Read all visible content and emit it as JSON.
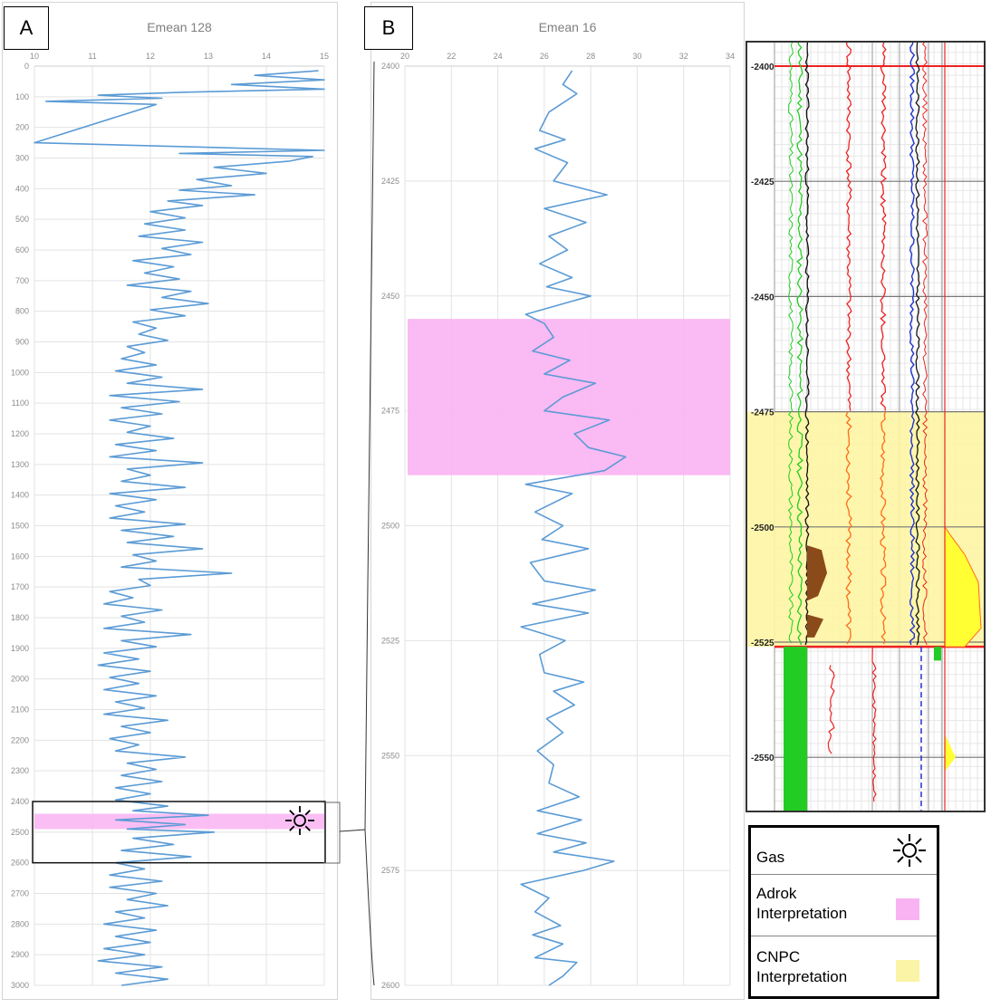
{
  "panel_a": {
    "letter": "A",
    "chart_data": {
      "type": "line",
      "title": "Emean 128",
      "x_axis_position": "top",
      "xlim": [
        10,
        15
      ],
      "x_ticks": [
        "10",
        "11",
        "12",
        "13",
        "14",
        "15"
      ],
      "ylim": [
        0,
        3000
      ],
      "y_inverted": true,
      "y_ticks": [
        "0",
        "100",
        "200",
        "300",
        "400",
        "500",
        "600",
        "700",
        "800",
        "900",
        "1000",
        "1100",
        "1200",
        "1300",
        "1400",
        "1500",
        "1600",
        "1700",
        "1800",
        "1900",
        "2000",
        "2100",
        "2200",
        "2300",
        "2400",
        "2500",
        "2600",
        "2700",
        "2800",
        "2900",
        "3000"
      ],
      "grid": true,
      "series": [
        {
          "color": "#5b9bd5",
          "points": [
            [
              14.9,
              15
            ],
            [
              13.8,
              30
            ],
            [
              15,
              45
            ],
            [
              13.4,
              60
            ],
            [
              15,
              75
            ],
            [
              12.6,
              85
            ],
            [
              11.1,
              95
            ],
            [
              12.2,
              105
            ],
            [
              10.2,
              115
            ],
            [
              12.1,
              125
            ],
            [
              10,
              250
            ],
            [
              15,
              275
            ],
            [
              12.5,
              285
            ],
            [
              14.8,
              295
            ],
            [
              14.4,
              310
            ],
            [
              13.1,
              330
            ],
            [
              14.0,
              350
            ],
            [
              12.8,
              370
            ],
            [
              13.4,
              390
            ],
            [
              12.5,
              405
            ],
            [
              13.8,
              420
            ],
            [
              12.3,
              440
            ],
            [
              12.9,
              455
            ],
            [
              12.0,
              475
            ],
            [
              12.6,
              495
            ],
            [
              11.9,
              515
            ],
            [
              12.6,
              535
            ],
            [
              11.8,
              555
            ],
            [
              12.9,
              575
            ],
            [
              12.2,
              595
            ],
            [
              12.7,
              615
            ],
            [
              11.7,
              635
            ],
            [
              12.4,
              655
            ],
            [
              11.9,
              675
            ],
            [
              12.5,
              695
            ],
            [
              11.6,
              715
            ],
            [
              12.7,
              735
            ],
            [
              12.2,
              755
            ],
            [
              13.0,
              775
            ],
            [
              12.0,
              795
            ],
            [
              12.6,
              815
            ],
            [
              11.7,
              835
            ],
            [
              12.1,
              855
            ],
            [
              11.8,
              875
            ],
            [
              12.3,
              895
            ],
            [
              11.6,
              915
            ],
            [
              11.9,
              935
            ],
            [
              11.5,
              955
            ],
            [
              12.1,
              975
            ],
            [
              11.4,
              995
            ],
            [
              12.2,
              1015
            ],
            [
              11.6,
              1035
            ],
            [
              12.9,
              1055
            ],
            [
              11.3,
              1075
            ],
            [
              12.5,
              1095
            ],
            [
              11.5,
              1115
            ],
            [
              12.2,
              1135
            ],
            [
              11.3,
              1155
            ],
            [
              12.0,
              1175
            ],
            [
              11.6,
              1195
            ],
            [
              12.4,
              1215
            ],
            [
              11.4,
              1235
            ],
            [
              12.1,
              1255
            ],
            [
              11.3,
              1275
            ],
            [
              12.9,
              1295
            ],
            [
              11.6,
              1315
            ],
            [
              12.0,
              1335
            ],
            [
              11.5,
              1355
            ],
            [
              12.6,
              1375
            ],
            [
              11.3,
              1395
            ],
            [
              12.1,
              1415
            ],
            [
              11.4,
              1435
            ],
            [
              11.9,
              1455
            ],
            [
              11.3,
              1475
            ],
            [
              12.6,
              1495
            ],
            [
              11.5,
              1515
            ],
            [
              12.4,
              1535
            ],
            [
              11.6,
              1555
            ],
            [
              12.9,
              1575
            ],
            [
              11.7,
              1595
            ],
            [
              12.1,
              1615
            ],
            [
              11.5,
              1635
            ],
            [
              13.4,
              1655
            ],
            [
              11.8,
              1675
            ],
            [
              12.0,
              1695
            ],
            [
              11.3,
              1715
            ],
            [
              11.7,
              1735
            ],
            [
              11.2,
              1755
            ],
            [
              12.2,
              1775
            ],
            [
              11.5,
              1795
            ],
            [
              11.9,
              1815
            ],
            [
              11.2,
              1835
            ],
            [
              12.7,
              1855
            ],
            [
              11.5,
              1875
            ],
            [
              12.1,
              1895
            ],
            [
              11.2,
              1915
            ],
            [
              11.8,
              1935
            ],
            [
              11.1,
              1955
            ],
            [
              12.0,
              1975
            ],
            [
              11.3,
              1995
            ],
            [
              11.8,
              2015
            ],
            [
              11.2,
              2035
            ],
            [
              12.1,
              2055
            ],
            [
              11.4,
              2075
            ],
            [
              11.9,
              2095
            ],
            [
              11.2,
              2115
            ],
            [
              12.3,
              2135
            ],
            [
              11.5,
              2155
            ],
            [
              12.0,
              2175
            ],
            [
              11.3,
              2195
            ],
            [
              11.8,
              2215
            ],
            [
              11.4,
              2235
            ],
            [
              12.6,
              2255
            ],
            [
              11.6,
              2275
            ],
            [
              12.1,
              2295
            ],
            [
              11.5,
              2315
            ],
            [
              12.2,
              2335
            ],
            [
              11.4,
              2355
            ],
            [
              12.0,
              2375
            ],
            [
              11.4,
              2395
            ],
            [
              12.3,
              2415
            ],
            [
              11.7,
              2430
            ],
            [
              13.0,
              2445
            ],
            [
              11.4,
              2460
            ],
            [
              12.6,
              2475
            ],
            [
              11.6,
              2490
            ],
            [
              13.1,
              2500
            ],
            [
              11.7,
              2520
            ],
            [
              12.4,
              2540
            ],
            [
              11.5,
              2560
            ],
            [
              12.7,
              2580
            ],
            [
              11.4,
              2600
            ],
            [
              11.9,
              2620
            ],
            [
              11.3,
              2640
            ],
            [
              12.2,
              2660
            ],
            [
              11.3,
              2680
            ],
            [
              12.1,
              2700
            ],
            [
              11.6,
              2720
            ],
            [
              12.3,
              2740
            ],
            [
              11.4,
              2760
            ],
            [
              11.9,
              2780
            ],
            [
              11.2,
              2800
            ],
            [
              12.1,
              2820
            ],
            [
              11.4,
              2840
            ],
            [
              12.0,
              2860
            ],
            [
              11.2,
              2880
            ],
            [
              11.9,
              2900
            ],
            [
              11.1,
              2920
            ],
            [
              12.2,
              2940
            ],
            [
              11.4,
              2960
            ],
            [
              12.3,
              2980
            ],
            [
              11.5,
              3000
            ]
          ]
        }
      ],
      "pink_band": [
        2440,
        2490
      ],
      "pink_color": "#f9b3f2",
      "highlight_box": [
        2400,
        2600
      ]
    }
  },
  "panel_b": {
    "letter": "B",
    "chart_data": {
      "type": "line",
      "title": "Emean 16",
      "x_axis_position": "top",
      "xlim": [
        20,
        34
      ],
      "x_ticks": [
        "20",
        "22",
        "24",
        "26",
        "28",
        "30",
        "32",
        "34"
      ],
      "ylim": [
        2400,
        2600
      ],
      "y_inverted": true,
      "y_ticks": [
        "2400",
        "2425",
        "2450",
        "2475",
        "2500",
        "2525",
        "2550",
        "2575",
        "2600"
      ],
      "grid": true,
      "series": [
        {
          "color": "#5b9bd5",
          "points": [
            [
              27.2,
              2401
            ],
            [
              26.8,
              2404
            ],
            [
              27.4,
              2406
            ],
            [
              26.2,
              2410
            ],
            [
              25.8,
              2414
            ],
            [
              26.9,
              2416
            ],
            [
              25.6,
              2418
            ],
            [
              27.0,
              2421
            ],
            [
              26.4,
              2425
            ],
            [
              28.7,
              2428
            ],
            [
              26.0,
              2431
            ],
            [
              27.8,
              2434
            ],
            [
              26.2,
              2437
            ],
            [
              27.0,
              2440
            ],
            [
              25.8,
              2443
            ],
            [
              27.2,
              2446
            ],
            [
              26.1,
              2448
            ],
            [
              28.0,
              2450
            ],
            [
              25.2,
              2454
            ],
            [
              26.0,
              2456
            ],
            [
              26.4,
              2459
            ],
            [
              25.5,
              2462
            ],
            [
              27.1,
              2464
            ],
            [
              26.0,
              2467
            ],
            [
              28.2,
              2469
            ],
            [
              26.8,
              2472
            ],
            [
              26.0,
              2475
            ],
            [
              28.8,
              2477
            ],
            [
              27.3,
              2480
            ],
            [
              27.9,
              2483
            ],
            [
              29.5,
              2485
            ],
            [
              28.6,
              2488
            ],
            [
              25.2,
              2491
            ],
            [
              27.2,
              2493
            ],
            [
              25.6,
              2497
            ],
            [
              26.8,
              2500
            ],
            [
              25.9,
              2503
            ],
            [
              27.9,
              2505
            ],
            [
              25.4,
              2508
            ],
            [
              26.0,
              2512
            ],
            [
              28.2,
              2514
            ],
            [
              25.5,
              2517
            ],
            [
              27.9,
              2519
            ],
            [
              25.0,
              2522
            ],
            [
              26.9,
              2525
            ],
            [
              25.8,
              2528
            ],
            [
              26.0,
              2532
            ],
            [
              27.7,
              2534
            ],
            [
              26.4,
              2536
            ],
            [
              27.3,
              2539
            ],
            [
              26.1,
              2542
            ],
            [
              26.8,
              2545
            ],
            [
              25.7,
              2549
            ],
            [
              26.4,
              2552
            ],
            [
              26.2,
              2556
            ],
            [
              27.5,
              2559
            ],
            [
              25.7,
              2562
            ],
            [
              27.6,
              2564
            ],
            [
              25.7,
              2567
            ],
            [
              27.8,
              2569
            ],
            [
              26.4,
              2571
            ],
            [
              29.0,
              2573
            ],
            [
              27.7,
              2575
            ],
            [
              25.0,
              2578
            ],
            [
              26.2,
              2581
            ],
            [
              25.6,
              2584
            ],
            [
              26.7,
              2587
            ],
            [
              25.5,
              2589
            ],
            [
              26.8,
              2591
            ],
            [
              25.6,
              2594
            ],
            [
              27.4,
              2595
            ],
            [
              26.8,
              2598
            ],
            [
              26.2,
              2600
            ]
          ]
        }
      ],
      "pink_band": [
        2455,
        2489
      ],
      "pink_color": "#f9b3f2"
    }
  },
  "well_log": {
    "depth_labels": [
      "2400",
      "2425",
      "2450",
      "2475",
      "2500",
      "2525",
      "2550"
    ],
    "colors": {
      "green": "#22cc22",
      "red": "#ee2222",
      "orange": "#ff6b1a",
      "blue": "#2233cc",
      "black": "#111111",
      "brown": "#8b4a1a",
      "yellow": "#ffff33",
      "yellow_band": "#fdf5a3"
    }
  },
  "legend": {
    "gas_label": "Gas",
    "adrok_label": "Adrok Interpretation",
    "cnpc_label": "CNPC Interpretation",
    "adrok_color": "#f9b3f2",
    "cnpc_color": "#fbf3a6"
  }
}
